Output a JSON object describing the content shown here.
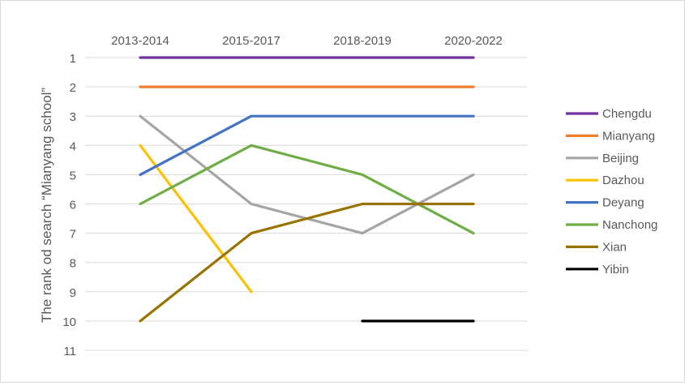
{
  "chart_data": {
    "type": "line",
    "title": "",
    "xlabel": "",
    "ylabel": "The rank od search “Mianyang school”",
    "categories": [
      "2013-2014",
      "2015-2017",
      "2018-2019",
      "2020-2022"
    ],
    "y_axis": {
      "min": 1,
      "max": 11,
      "reversed": true,
      "ticks": [
        1,
        2,
        3,
        4,
        5,
        6,
        7,
        8,
        9,
        10,
        11
      ],
      "gridlines": true
    },
    "legend_position": "right",
    "series": [
      {
        "name": "Chengdu",
        "color": "#7030a0",
        "values": [
          1,
          1,
          1,
          1
        ]
      },
      {
        "name": "Mianyang",
        "color": "#ed7d31",
        "values": [
          2,
          2,
          2,
          2
        ]
      },
      {
        "name": "Beijing",
        "color": "#a5a5a5",
        "values": [
          3,
          6,
          7,
          5
        ]
      },
      {
        "name": "Dazhou",
        "color": "#ffc000",
        "values": [
          4,
          9,
          null,
          null
        ]
      },
      {
        "name": "Deyang",
        "color": "#4472c4",
        "values": [
          5,
          3,
          3,
          3
        ]
      },
      {
        "name": "Nanchong",
        "color": "#70ad47",
        "values": [
          6,
          4,
          5,
          7
        ]
      },
      {
        "name": "Xian",
        "color": "#997300",
        "values": [
          10,
          7,
          6,
          6
        ]
      },
      {
        "name": "Yibin",
        "color": "#000000",
        "values": [
          null,
          null,
          10,
          10
        ]
      }
    ]
  }
}
